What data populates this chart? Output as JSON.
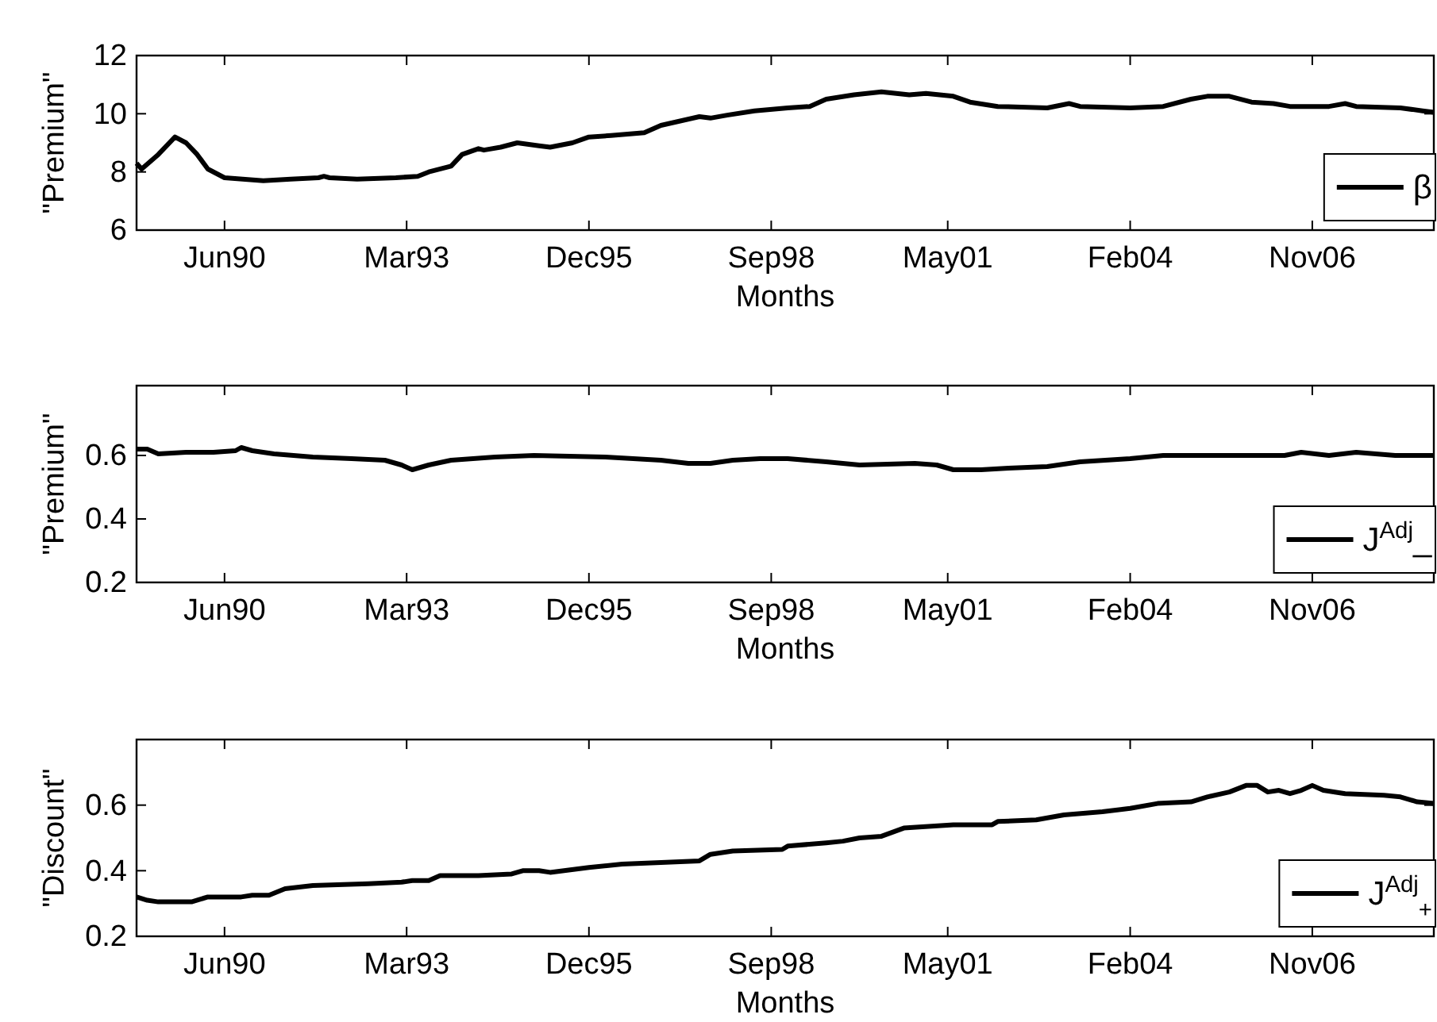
{
  "chart_data": [
    {
      "type": "line",
      "xlabel": "Months",
      "ylabel": "\"Premium\"",
      "legend": "bottom right",
      "xlim": [
        "1989-02",
        "2008-09"
      ],
      "ylim": [
        6,
        12
      ],
      "yticks": [
        6,
        8,
        10,
        12
      ],
      "xticks": [
        {
          "value": "1990-06",
          "label": "Jun90"
        },
        {
          "value": "1993-03",
          "label": "Mar93"
        },
        {
          "value": "1995-12",
          "label": "Dec95"
        },
        {
          "value": "1998-09",
          "label": "Sep98"
        },
        {
          "value": "2001-05",
          "label": "May01"
        },
        {
          "value": "2004-02",
          "label": "Feb04"
        },
        {
          "value": "2006-11",
          "label": "Nov06"
        }
      ],
      "x": [
        "1989-02",
        "1989-03",
        "1989-06",
        "1989-09",
        "1989-11",
        "1990-01",
        "1990-03",
        "1990-06",
        "1991-01",
        "1991-06",
        "1991-11",
        "1991-12",
        "1992-01",
        "1992-06",
        "1993-01",
        "1993-05",
        "1993-07",
        "1993-11",
        "1994-01",
        "1994-04",
        "1994-05",
        "1994-08",
        "1994-11",
        "1995-03",
        "1995-05",
        "1995-09",
        "1995-12",
        "1996-04",
        "1996-10",
        "1997-01",
        "1997-08",
        "1997-10",
        "1998-01",
        "1998-06",
        "1998-12",
        "1999-04",
        "1999-07",
        "1999-12",
        "2000-05",
        "2000-10",
        "2001-01",
        "2001-06",
        "2001-09",
        "2002-02",
        "2002-11",
        "2003-03",
        "2003-05",
        "2004-02",
        "2004-08",
        "2005-01",
        "2005-04",
        "2005-08",
        "2005-12",
        "2006-04",
        "2006-07",
        "2007-02",
        "2007-05",
        "2007-07",
        "2008-03",
        "2008-07",
        "2008-09"
      ],
      "series": [
        {
          "name": "β",
          "color": "#000000",
          "values": [
            8.3,
            8.1,
            8.6,
            9.2,
            9.0,
            8.6,
            8.1,
            7.8,
            7.7,
            7.75,
            7.8,
            7.85,
            7.8,
            7.75,
            7.8,
            7.85,
            8.0,
            8.2,
            8.6,
            8.8,
            8.75,
            8.85,
            9.0,
            8.9,
            8.85,
            9.0,
            9.2,
            9.25,
            9.35,
            9.6,
            9.9,
            9.85,
            9.95,
            10.1,
            10.2,
            10.25,
            10.5,
            10.65,
            10.75,
            10.65,
            10.7,
            10.6,
            10.4,
            10.25,
            10.2,
            10.35,
            10.25,
            10.2,
            10.25,
            10.5,
            10.6,
            10.6,
            10.4,
            10.35,
            10.25,
            10.25,
            10.35,
            10.25,
            10.2,
            10.1,
            10.05
          ]
        }
      ]
    },
    {
      "type": "line",
      "xlabel": "Months",
      "ylabel": "\"Premium\"",
      "legend": "bottom right",
      "xlim": [
        "1989-02",
        "2008-09"
      ],
      "ylim": [
        0.2,
        0.82
      ],
      "yticks": [
        0.2,
        0.4,
        0.6
      ],
      "xticks": [
        {
          "value": "1990-06",
          "label": "Jun90"
        },
        {
          "value": "1993-03",
          "label": "Mar93"
        },
        {
          "value": "1995-12",
          "label": "Dec95"
        },
        {
          "value": "1998-09",
          "label": "Sep98"
        },
        {
          "value": "2001-05",
          "label": "May01"
        },
        {
          "value": "2004-02",
          "label": "Feb04"
        },
        {
          "value": "2006-11",
          "label": "Nov06"
        }
      ],
      "x": [
        "1989-02",
        "1989-04",
        "1989-06",
        "1989-11",
        "1990-04",
        "1990-08",
        "1990-09",
        "1990-11",
        "1991-03",
        "1991-10",
        "1992-05",
        "1992-11",
        "1993-02",
        "1993-04",
        "1993-07",
        "1993-11",
        "1994-07",
        "1995-02",
        "1996-03",
        "1997-01",
        "1997-06",
        "1997-10",
        "1998-02",
        "1998-07",
        "1998-12",
        "1999-07",
        "2000-01",
        "2000-11",
        "2001-03",
        "2001-06",
        "2001-11",
        "2002-04",
        "2002-11",
        "2003-05",
        "2004-02",
        "2004-08",
        "2005-10",
        "2006-06",
        "2006-09",
        "2007-02",
        "2007-07",
        "2008-02",
        "2008-09"
      ],
      "series": [
        {
          "name": "J$^{Adj}$_",
          "color": "#000000",
          "values": [
            0.62,
            0.62,
            0.605,
            0.61,
            0.61,
            0.615,
            0.625,
            0.615,
            0.605,
            0.595,
            0.59,
            0.585,
            0.57,
            0.555,
            0.57,
            0.585,
            0.595,
            0.6,
            0.595,
            0.585,
            0.575,
            0.575,
            0.585,
            0.59,
            0.59,
            0.58,
            0.57,
            0.575,
            0.57,
            0.555,
            0.555,
            0.56,
            0.565,
            0.58,
            0.59,
            0.6,
            0.6,
            0.6,
            0.61,
            0.6,
            0.61,
            0.6,
            0.6
          ]
        }
      ]
    },
    {
      "type": "line",
      "xlabel": "Months",
      "ylabel": "\"Discount\"",
      "legend": "bottom right",
      "xlim": [
        "1989-02",
        "2008-09"
      ],
      "ylim": [
        0.2,
        0.8
      ],
      "yticks": [
        0.2,
        0.4,
        0.6
      ],
      "xticks": [
        {
          "value": "1990-06",
          "label": "Jun90"
        },
        {
          "value": "1993-03",
          "label": "Mar93"
        },
        {
          "value": "1995-12",
          "label": "Dec95"
        },
        {
          "value": "1998-09",
          "label": "Sep98"
        },
        {
          "value": "2001-05",
          "label": "May01"
        },
        {
          "value": "2004-02",
          "label": "Feb04"
        },
        {
          "value": "2006-11",
          "label": "Nov06"
        }
      ],
      "x": [
        "1989-02",
        "1989-04",
        "1989-06",
        "1989-12",
        "1990-03",
        "1990-09",
        "1990-11",
        "1991-02",
        "1991-05",
        "1991-10",
        "1992-08",
        "1993-02",
        "1993-04",
        "1993-07",
        "1993-09",
        "1994-04",
        "1994-10",
        "1994-12",
        "1995-03",
        "1995-05",
        "1995-12",
        "1996-06",
        "1997-01",
        "1997-08",
        "1997-10",
        "1998-02",
        "1998-11",
        "1998-12",
        "1999-07",
        "1999-10",
        "2000-01",
        "2000-05",
        "2000-09",
        "2001-06",
        "2002-01",
        "2002-02",
        "2002-09",
        "2003-02",
        "2003-09",
        "2004-02",
        "2004-07",
        "2005-01",
        "2005-04",
        "2005-08",
        "2005-11",
        "2006-01",
        "2006-03",
        "2006-05",
        "2006-07",
        "2006-09",
        "2006-11",
        "2007-01",
        "2007-05",
        "2007-12",
        "2008-03",
        "2008-06",
        "2008-09"
      ],
      "series": [
        {
          "name": "J$^{Adj}$$_{+}$",
          "color": "#000000",
          "values": [
            0.32,
            0.31,
            0.305,
            0.305,
            0.32,
            0.32,
            0.325,
            0.325,
            0.345,
            0.355,
            0.36,
            0.365,
            0.37,
            0.37,
            0.385,
            0.385,
            0.39,
            0.4,
            0.4,
            0.395,
            0.41,
            0.42,
            0.425,
            0.43,
            0.45,
            0.46,
            0.465,
            0.475,
            0.485,
            0.49,
            0.5,
            0.505,
            0.53,
            0.54,
            0.54,
            0.55,
            0.555,
            0.57,
            0.58,
            0.59,
            0.605,
            0.61,
            0.625,
            0.64,
            0.66,
            0.66,
            0.64,
            0.645,
            0.635,
            0.645,
            0.66,
            0.645,
            0.635,
            0.63,
            0.625,
            0.61,
            0.605
          ]
        }
      ]
    }
  ]
}
